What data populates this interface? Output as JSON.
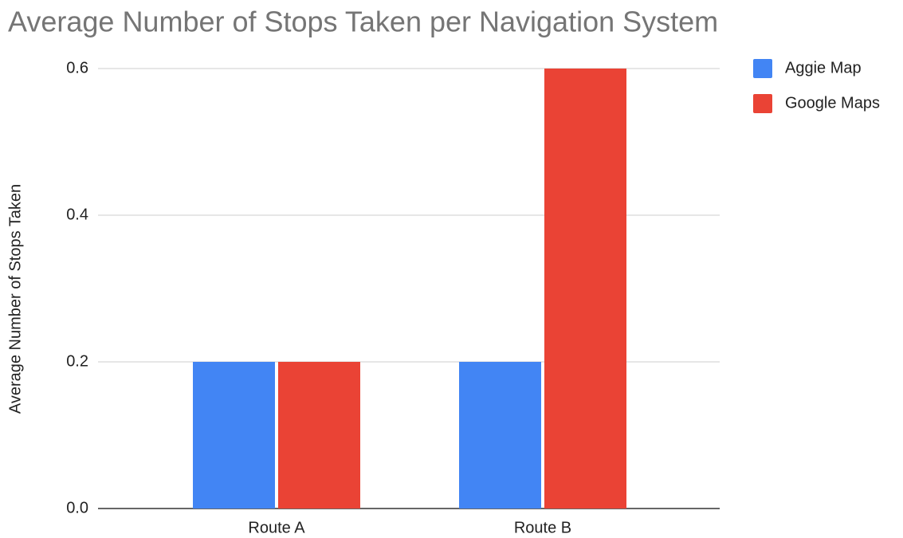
{
  "chart_data": {
    "type": "bar",
    "title": "Average Number of Stops Taken per Navigation System",
    "y_label": "Average Number of Stops Taken",
    "categories": [
      "Route A",
      "Route B"
    ],
    "series": [
      {
        "name": "Aggie Map",
        "color": "#4285f4",
        "values": [
          0.2,
          0.2
        ]
      },
      {
        "name": "Google Maps",
        "color": "#ea4335",
        "values": [
          0.2,
          0.6
        ]
      }
    ],
    "ylim": [
      0,
      0.6
    ],
    "yticks": [
      {
        "value": 0,
        "label": "0.0"
      },
      0.2,
      0.4,
      0.6
    ],
    "grid": true,
    "legend": "right"
  }
}
